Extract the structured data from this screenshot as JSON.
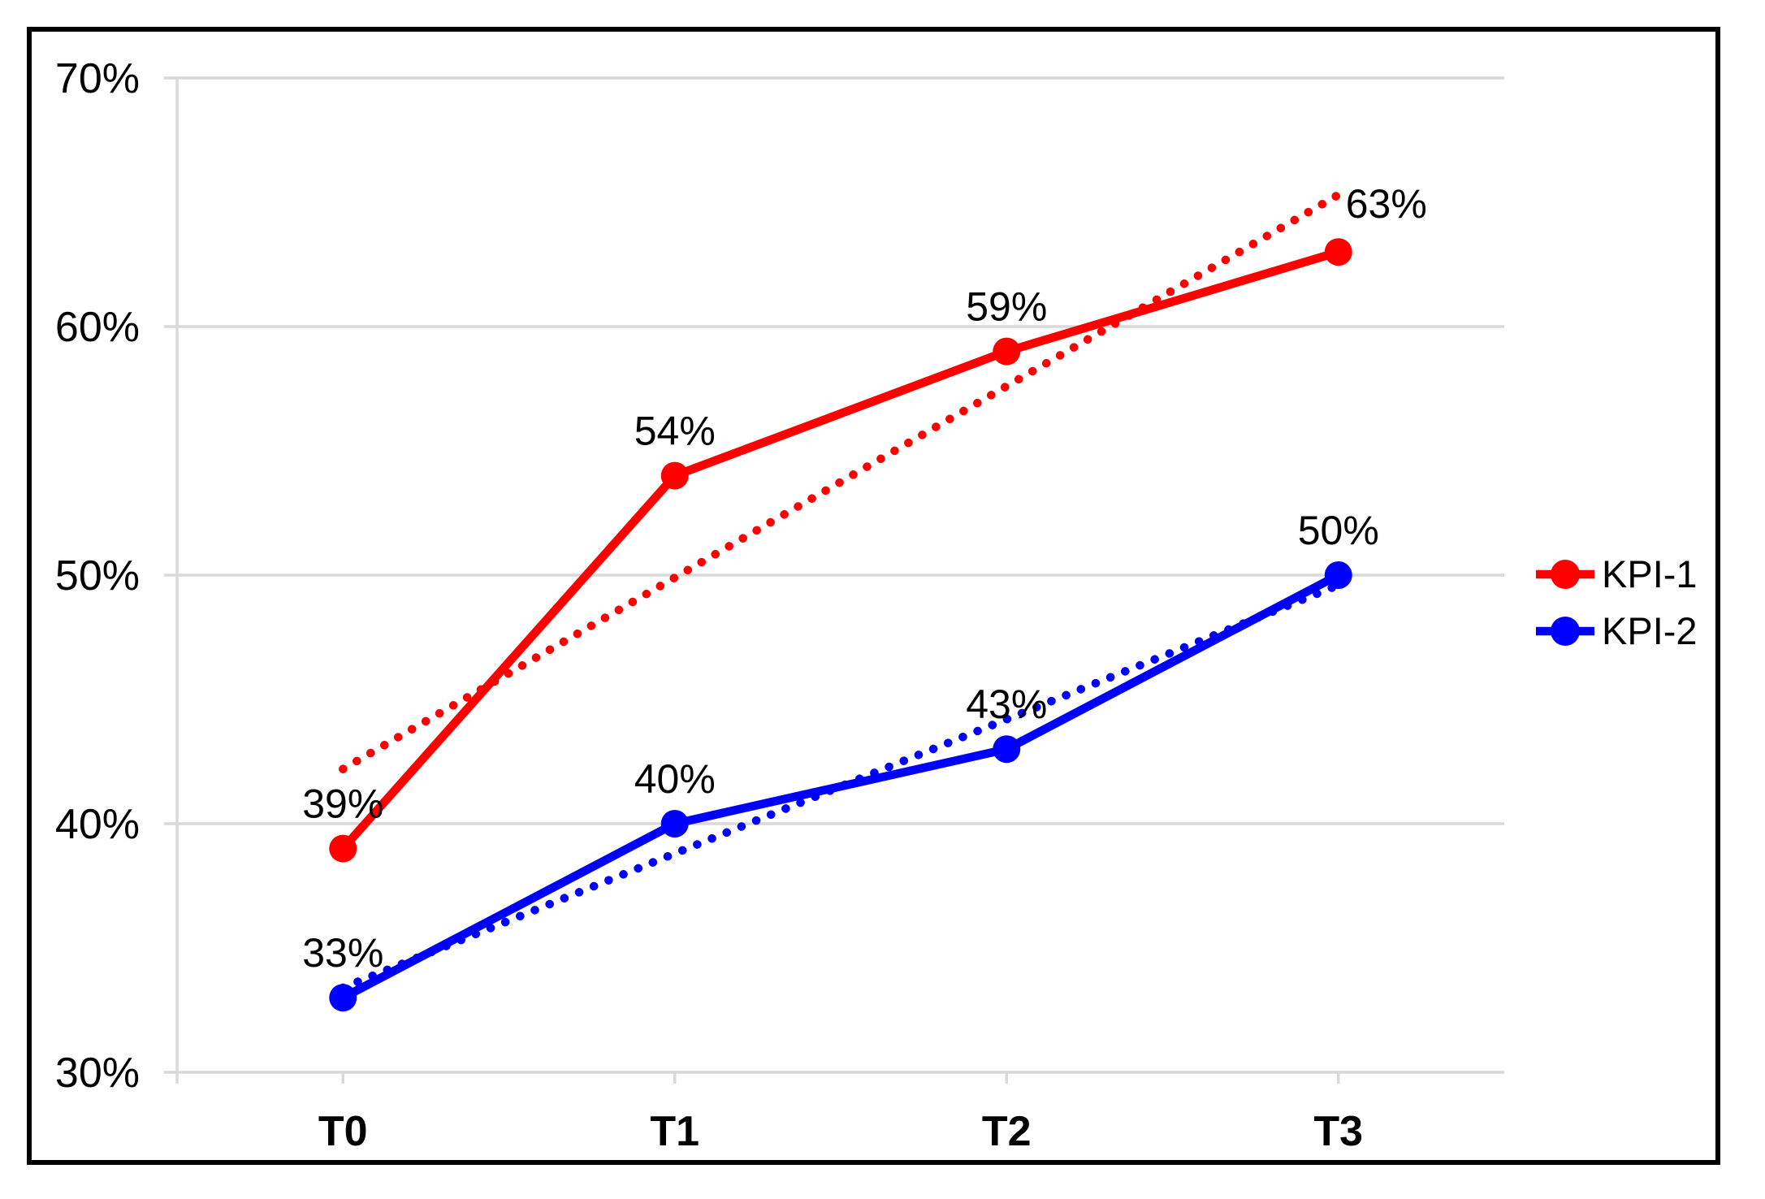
{
  "chart_data": {
    "type": "line",
    "title": "",
    "xlabel": "",
    "ylabel": "",
    "categories": [
      "T0",
      "T1",
      "T2",
      "T3"
    ],
    "series": [
      {
        "name": "KPI-1",
        "color": "#ff0000",
        "values": [
          39,
          54,
          59,
          63
        ],
        "point_labels": [
          "39%",
          "54%",
          "59%",
          "63%"
        ],
        "trendline": "dotted-linear"
      },
      {
        "name": "KPI-2",
        "color": "#0000ff",
        "values": [
          33,
          40,
          43,
          50
        ],
        "point_labels": [
          "33%",
          "40%",
          "43%",
          "50%"
        ],
        "trendline": "dotted-linear"
      }
    ],
    "ylim": [
      30,
      70
    ],
    "yticks": [
      30,
      40,
      50,
      60,
      70
    ],
    "ytick_labels": [
      "30%",
      "40%",
      "50%",
      "60%",
      "70%"
    ],
    "grid": true,
    "legend_position": "right",
    "colors": {
      "gridline": "#d9d9d9",
      "axis": "#d9d9d9",
      "text": "#000000",
      "frame_border": "#000000",
      "background": "#ffffff"
    }
  }
}
